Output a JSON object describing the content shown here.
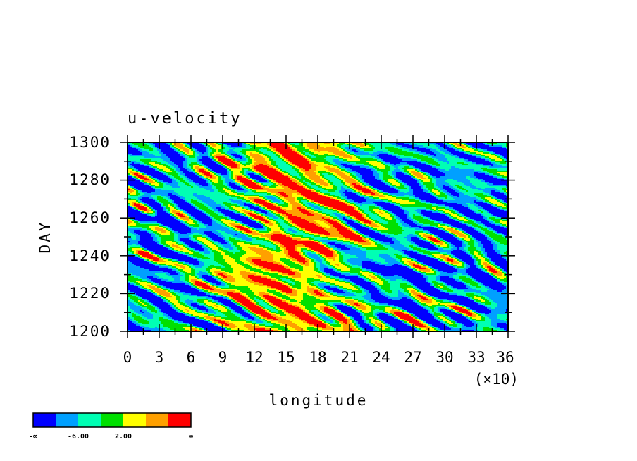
{
  "chart_data": {
    "type": "heatmap",
    "title": "u-velocity",
    "xlabel": "longitude",
    "ylabel": "DAY",
    "x_multiplier_label": "(×10)",
    "xlim": [
      0,
      36
    ],
    "ylim": [
      1200,
      1300
    ],
    "x_ticks": [
      "0",
      "3",
      "6",
      "9",
      "12",
      "15",
      "18",
      "21",
      "24",
      "27",
      "30",
      "33",
      "36"
    ],
    "y_ticks": [
      "1200",
      "1220",
      "1240",
      "1260",
      "1280",
      "1300"
    ],
    "y_tick_values": [
      1200,
      1220,
      1240,
      1260,
      1280,
      1300
    ],
    "colorbar": {
      "colors": [
        "#0000ff",
        "#00a0ff",
        "#00ffb4",
        "#00e000",
        "#ffff00",
        "#ffa000",
        "#ff0000"
      ],
      "labels": [
        "-∞",
        "-6.00",
        "2.00",
        "∞"
      ]
    }
  }
}
